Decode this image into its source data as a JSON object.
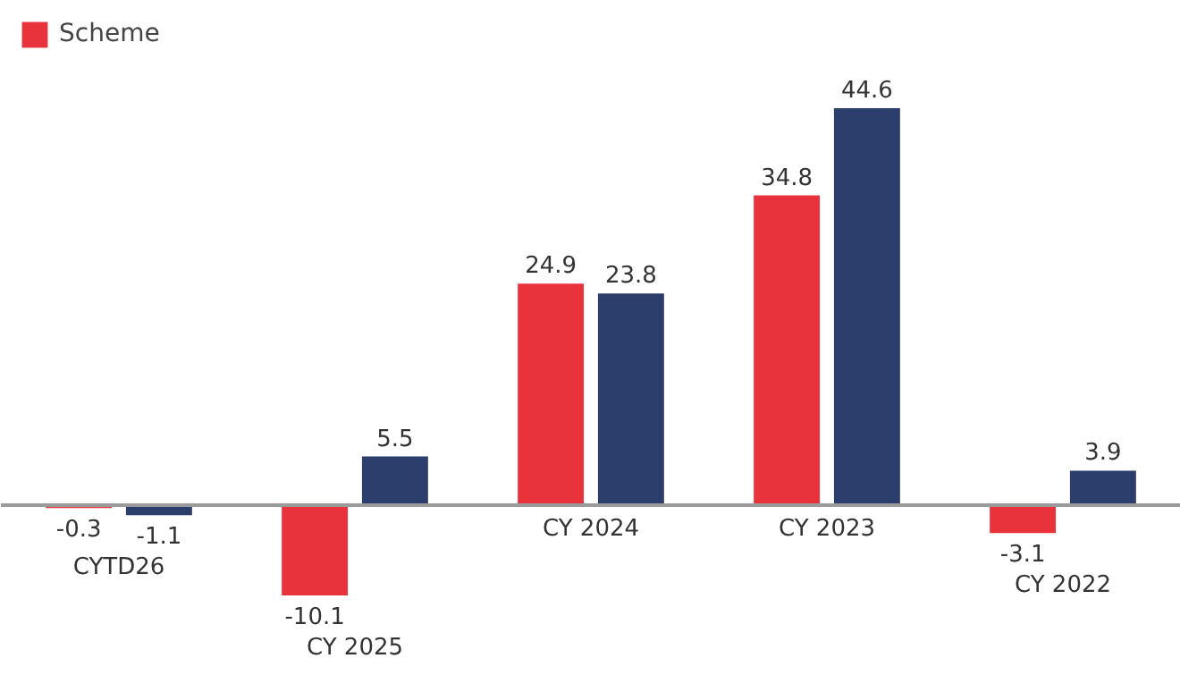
{
  "chart_data": {
    "type": "bar",
    "categories": [
      "CYTD26",
      "CY 2025",
      "CY 2024",
      "CY 2023",
      "CY 2022"
    ],
    "series": [
      {
        "name": "Scheme",
        "color": "#e8323c",
        "values": [
          -0.3,
          -10.1,
          24.9,
          34.8,
          -3.1
        ]
      },
      {
        "color": "#2c3e6b",
        "values": [
          -1.1,
          5.5,
          23.8,
          44.6,
          3.9
        ]
      }
    ],
    "data_labels": true,
    "legend": "top left",
    "grid": false
  }
}
